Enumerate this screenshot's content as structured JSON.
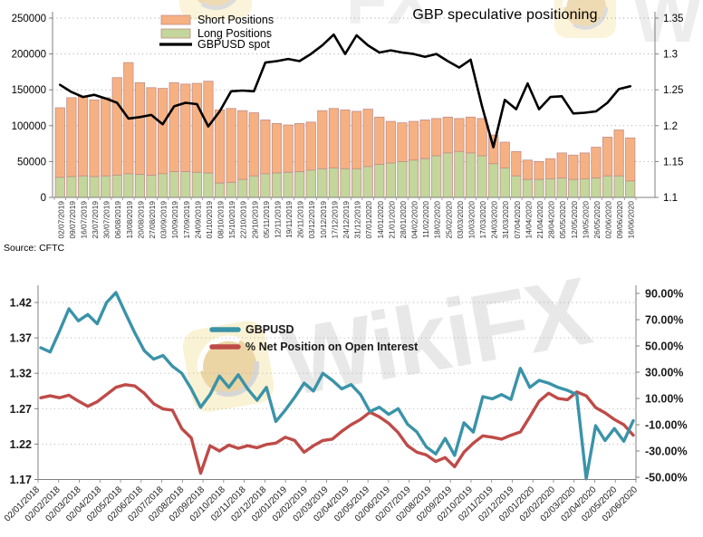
{
  "title": "GBP speculative positioning",
  "source": "Source: CFTC",
  "watermark": {
    "text": "WikiFX",
    "logo_bg": "#FAF0CD",
    "logo_globe": "#E9CE96",
    "text_color": "#E5E5E5"
  },
  "colors": {
    "short_bar": "#F6B183",
    "long_bar": "#C3D69B",
    "bar_border": "#C08E89",
    "spot_line": "#000000",
    "gbpusd_line": "#3A93A8",
    "net_position_line": "#BE4B48",
    "gridline": "#9E9E9E",
    "axis": "#808080"
  },
  "chart_data": [
    {
      "type": "bar",
      "subtype": "stacked-bars-with-line",
      "title": "GBP speculative positioning",
      "source": "Source: CFTC",
      "legend_position": "top-left-inside",
      "grid": "dotted-horizontal",
      "categories": [
        "02/07/2019",
        "09/07/2019",
        "16/07/2019",
        "23/07/2019",
        "30/07/2019",
        "06/08/2019",
        "13/08/2019",
        "20/08/2019",
        "27/08/2019",
        "03/09/2019",
        "10/09/2019",
        "17/09/2019",
        "24/09/2019",
        "01/10/2019",
        "08/10/2019",
        "15/10/2019",
        "22/10/2019",
        "29/10/2019",
        "05/11/2019",
        "12/11/2019",
        "19/11/2019",
        "26/11/2019",
        "03/12/2019",
        "10/12/2019",
        "17/12/2019",
        "24/12/2019",
        "31/12/2019",
        "07/01/2020",
        "14/01/2020",
        "21/01/2020",
        "28/01/2020",
        "04/02/2020",
        "11/02/2020",
        "18/02/2020",
        "25/02/2020",
        "03/03/2020",
        "10/03/2020",
        "17/03/2020",
        "24/03/2020",
        "31/03/2020",
        "07/04/2020",
        "14/04/2020",
        "21/04/2020",
        "28/04/2020",
        "05/05/2020",
        "12/05/2020",
        "19/05/2020",
        "26/05/2020",
        "02/06/2020",
        "09/06/2020",
        "16/06/2020"
      ],
      "series": [
        {
          "name": "Short Positions",
          "type": "bar",
          "stack": "total",
          "color": "#F6B183",
          "values": [
            97000,
            110000,
            111000,
            107000,
            109000,
            136000,
            155000,
            128000,
            122000,
            119000,
            124000,
            122000,
            124000,
            128000,
            102000,
            103000,
            96000,
            88000,
            75000,
            69000,
            66000,
            67000,
            67000,
            81000,
            83000,
            82000,
            80000,
            80000,
            66000,
            58000,
            54000,
            54000,
            54000,
            52000,
            50000,
            46000,
            50000,
            52000,
            40000,
            36000,
            34000,
            27000,
            25000,
            28000,
            35000,
            34000,
            36000,
            43000,
            54000,
            64000,
            60000
          ]
        },
        {
          "name": "Long Positions",
          "type": "bar",
          "stack": "total",
          "color": "#C3D69B",
          "values": [
            28000,
            29000,
            30000,
            29000,
            30000,
            31000,
            33000,
            32000,
            31000,
            33000,
            36000,
            36000,
            35000,
            34000,
            20000,
            21000,
            25000,
            30000,
            33000,
            34000,
            35000,
            36000,
            38000,
            40000,
            41000,
            40000,
            40000,
            43000,
            46000,
            48000,
            50000,
            52000,
            54000,
            58000,
            62000,
            64000,
            62000,
            58000,
            47000,
            41000,
            30000,
            25000,
            25000,
            26000,
            27000,
            25000,
            26000,
            27000,
            30000,
            30000,
            23000
          ]
        },
        {
          "name": "GBPUSD spot",
          "type": "line",
          "axis": "right",
          "color": "#000000",
          "values": [
            1.257,
            1.247,
            1.24,
            1.243,
            1.238,
            1.232,
            1.21,
            1.212,
            1.215,
            1.202,
            1.227,
            1.232,
            1.23,
            1.199,
            1.22,
            1.248,
            1.249,
            1.248,
            1.288,
            1.29,
            1.293,
            1.29,
            1.3,
            1.312,
            1.327,
            1.3,
            1.326,
            1.312,
            1.302,
            1.305,
            1.302,
            1.3,
            1.296,
            1.3,
            1.29,
            1.281,
            1.292,
            1.227,
            1.17,
            1.236,
            1.223,
            1.259,
            1.223,
            1.24,
            1.241,
            1.217,
            1.218,
            1.22,
            1.232,
            1.251,
            1.255
          ]
        }
      ],
      "left_axis": {
        "min": 0,
        "max": 250000,
        "ticks": [
          "250000",
          "200000",
          "150000",
          "100000",
          "50000",
          "0"
        ],
        "tick_values": [
          250000,
          200000,
          150000,
          100000,
          50000,
          0
        ]
      },
      "right_axis": {
        "min": 1.1,
        "max": 1.35,
        "ticks": [
          "1.35",
          "1.3",
          "1.25",
          "1.2",
          "1.15",
          "1.1"
        ],
        "tick_values": [
          1.35,
          1.3,
          1.25,
          1.2,
          1.15,
          1.1
        ]
      }
    },
    {
      "type": "line",
      "subtype": "dual-axis-lines",
      "legend_position": "middle-left-inside",
      "grid": "dotted-horizontal",
      "x_labels": [
        "02/01/2018",
        "02/02/2018",
        "02/03/2018",
        "02/04/2018",
        "02/05/2018",
        "02/06/2018",
        "02/07/2018",
        "02/08/2018",
        "02/09/2018",
        "02/10/2018",
        "02/11/2018",
        "02/12/2018",
        "02/01/2019",
        "02/02/2019",
        "02/03/2019",
        "02/04/2019",
        "02/05/2019",
        "02/06/2019",
        "02/07/2019",
        "02/08/2019",
        "02/09/2019",
        "02/10/2019",
        "02/11/2019",
        "02/12/2019",
        "02/01/2020",
        "02/02/2020",
        "02/03/2020",
        "02/04/2020",
        "02/05/2020",
        "02/06/2020"
      ],
      "series": [
        {
          "name": "GBPUSD",
          "axis": "left",
          "color": "#3A93A8",
          "values": [
            1.356,
            1.35,
            1.38,
            1.411,
            1.394,
            1.403,
            1.39,
            1.42,
            1.434,
            1.405,
            1.377,
            1.352,
            1.34,
            1.345,
            1.33,
            1.32,
            1.298,
            1.272,
            1.29,
            1.316,
            1.3,
            1.318,
            1.298,
            1.282,
            1.3,
            1.252,
            1.268,
            1.286,
            1.306,
            1.295,
            1.32,
            1.31,
            1.298,
            1.304,
            1.29,
            1.266,
            1.272,
            1.262,
            1.27,
            1.248,
            1.237,
            1.216,
            1.206,
            1.228,
            1.204,
            1.25,
            1.237,
            1.287,
            1.284,
            1.29,
            1.283,
            1.327,
            1.3,
            1.31,
            1.306,
            1.3,
            1.296,
            1.29,
            1.171,
            1.246,
            1.225,
            1.242,
            1.224,
            1.253
          ]
        },
        {
          "name": "% Net Position on Open Interest",
          "axis": "right",
          "color": "#BE4B48",
          "values": [
            10.5,
            12.0,
            10.5,
            12.5,
            8.0,
            4.0,
            7.5,
            13.0,
            18.5,
            20.5,
            19.5,
            14.0,
            6.0,
            2.0,
            1.0,
            -13.0,
            -20.0,
            -47.0,
            -26.0,
            -30.0,
            -25.5,
            -28.0,
            -26.0,
            -27.5,
            -25.0,
            -24.0,
            -19.5,
            -22.0,
            -31.0,
            -26.0,
            -22.0,
            -21.0,
            -15.0,
            -10.0,
            -6.0,
            -0.5,
            -4.0,
            -9.0,
            -16.0,
            -26.0,
            -31.0,
            -33.0,
            -38.0,
            -35.0,
            -42.0,
            -31.0,
            -24.0,
            -18.5,
            -19.5,
            -21.0,
            -18.0,
            -15.5,
            -4.0,
            8.0,
            14.0,
            10.0,
            9.0,
            15.0,
            12.0,
            3.0,
            -1.0,
            -6.0,
            -10.0,
            -18.0
          ]
        }
      ],
      "left_axis": {
        "min": 1.17,
        "max": 1.42,
        "ticks": [
          "1.42",
          "1.37",
          "1.32",
          "1.27",
          "1.22",
          "1.17"
        ],
        "tick_values": [
          1.42,
          1.37,
          1.32,
          1.27,
          1.22,
          1.17
        ]
      },
      "right_axis": {
        "min": -50,
        "max": 90,
        "ticks": [
          "90.00%",
          "70.00%",
          "50.00%",
          "30.00%",
          "10.00%",
          "-10.00%",
          "-30.00%",
          "-50.00%"
        ],
        "tick_values": [
          90,
          70,
          50,
          30,
          10,
          -10,
          -30,
          -50
        ]
      }
    }
  ]
}
